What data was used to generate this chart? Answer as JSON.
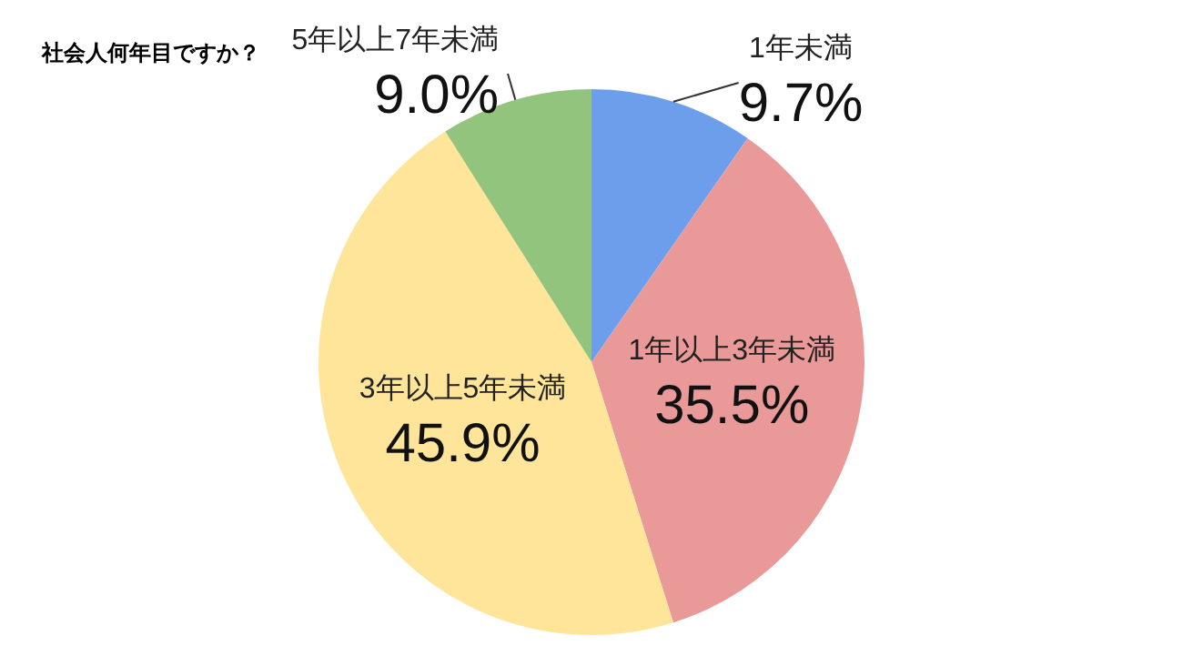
{
  "chart_data": {
    "type": "pie",
    "title": "社会人何年目ですか？",
    "categories": [
      "1年未満",
      "1年以上3年未満",
      "3年以上5年未満",
      "5年以上7年未満"
    ],
    "values": [
      9.7,
      35.5,
      45.9,
      9.0
    ],
    "value_labels": [
      "9.7%",
      "35.5%",
      "45.9%",
      "9.0%"
    ],
    "colors": [
      "#6d9eeb",
      "#ea9999",
      "#ffe599",
      "#93c47d"
    ],
    "legend": false
  }
}
